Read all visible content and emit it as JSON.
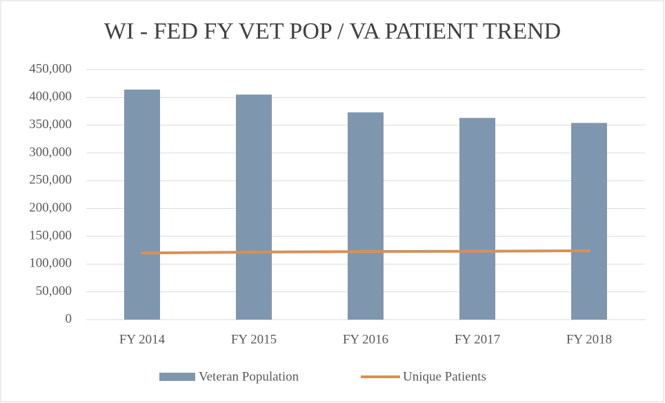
{
  "chart_data": {
    "type": "bar",
    "title": "WI - FED FY VET POP / VA PATIENT TREND",
    "categories": [
      "FY 2014",
      "FY 2015",
      "FY 2016",
      "FY 2017",
      "FY 2018"
    ],
    "series": [
      {
        "name": "Veteran Population",
        "type": "bar",
        "color": "#7f97ae",
        "values": [
          414000,
          405000,
          373000,
          363000,
          354000
        ]
      },
      {
        "name": "Unique Patients",
        "type": "line",
        "color": "#d4915a",
        "values": [
          120000,
          121500,
          122500,
          123000,
          124000
        ]
      }
    ],
    "ylim": [
      0,
      450000
    ],
    "yticks": [
      0,
      {
        "value": 50000,
        "label": "50,000"
      },
      {
        "value": 100000,
        "label": "100,000"
      },
      {
        "value": 150000,
        "label": "150,000"
      },
      {
        "value": 200000,
        "label": "200,000"
      },
      {
        "value": 250000,
        "label": "250,000"
      },
      {
        "value": 300000,
        "label": "300,000"
      },
      {
        "value": 350000,
        "label": "350,000"
      },
      {
        "value": 400000,
        "label": "400,000"
      },
      {
        "value": 450000,
        "label": "450,000"
      }
    ],
    "grid": true,
    "legend": "bottom"
  }
}
